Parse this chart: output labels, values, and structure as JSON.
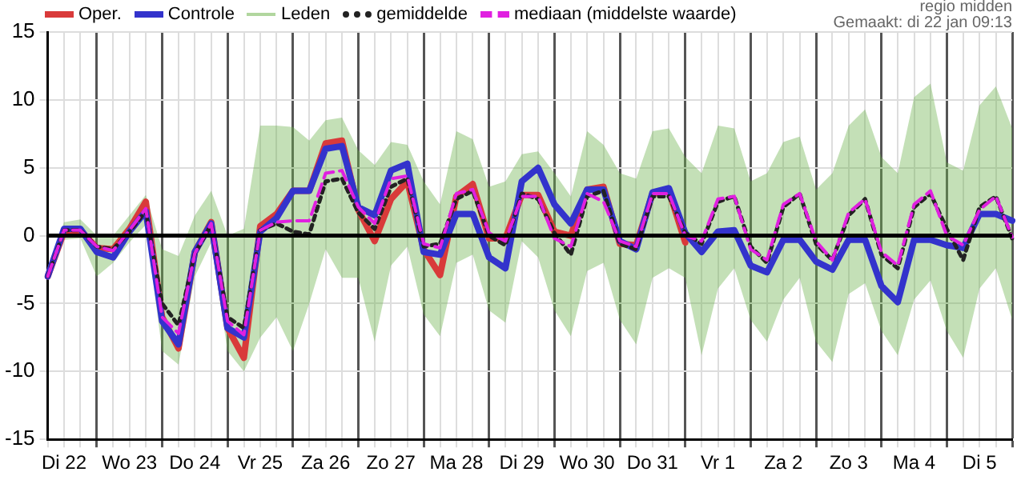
{
  "chart_data": {
    "type": "line",
    "categories": [
      null,
      "Di 22",
      null,
      null,
      null,
      "Wo 23",
      null,
      null,
      null,
      "Do 24",
      null,
      null,
      null,
      "Vr 25",
      null,
      null,
      null,
      "Za 26",
      null,
      null,
      null,
      "Zo 27",
      null,
      null,
      null,
      "Ma 28",
      null,
      null,
      null,
      "Di 29",
      null,
      null,
      null,
      "Wo 30",
      null,
      null,
      null,
      "Do 31",
      null,
      null,
      null,
      "Vr 1",
      null,
      null,
      null,
      "Za 2",
      null,
      null,
      null,
      "Zo 3",
      null,
      null,
      null,
      "Ma 4",
      null,
      null,
      null,
      "Di 5",
      null,
      null
    ],
    "ylim": [
      -15,
      15
    ],
    "yticks": [
      -15,
      -10,
      -5,
      0,
      5,
      10,
      15
    ],
    "grid": true,
    "legend": "top",
    "marker": "none",
    "ref_lines": [
      {
        "axis": "y",
        "value": 0,
        "color": "#000000"
      }
    ],
    "annotations": [
      "regio midden",
      "Gemaakt: di 22 jan 09:13"
    ],
    "series": [
      {
        "name": "Oper.",
        "color": "#d93a3a",
        "line_style": "solid",
        "values": [
          -3,
          0.3,
          0.4,
          -0.9,
          -1,
          0.5,
          2.5,
          -6,
          -8.3,
          -1.2,
          1,
          -6.8,
          -9,
          0.7,
          1.6,
          3.3,
          3.3,
          6.8,
          7,
          1.9,
          -0.4,
          2.7,
          4,
          -1,
          -2.9,
          2.9,
          3.8,
          -0.2,
          -0.2,
          3,
          3,
          0.3,
          0,
          3.4,
          3.6,
          -0.6,
          -0.7,
          3.1,
          3.3,
          -0.5,
          null,
          null,
          null,
          null,
          null,
          null,
          null,
          null,
          null,
          null,
          null,
          null,
          null,
          null,
          null,
          null,
          null,
          null,
          null,
          null
        ]
      },
      {
        "name": "Controle",
        "color": "#3333cc",
        "line_style": "solid",
        "values": [
          -3,
          0.5,
          0.5,
          -1.2,
          -1.6,
          0.3,
          1.8,
          -6.3,
          -8,
          -1.2,
          0.9,
          -6.8,
          -7.5,
          0.3,
          1.3,
          3.3,
          3.3,
          6.4,
          6.6,
          2.1,
          1.5,
          4.8,
          5.3,
          -1.2,
          -1.4,
          1.6,
          1.6,
          -1.6,
          -2.4,
          4,
          5,
          2.3,
          0.9,
          3.4,
          3.4,
          -0.4,
          -1,
          3.2,
          3.5,
          0.2,
          -1.2,
          0.3,
          0.4,
          -2.2,
          -2.7,
          -0.3,
          -0.3,
          -1.9,
          -2.5,
          -0.3,
          -0.3,
          -3.7,
          -4.9,
          -0.3,
          -0.3,
          -0.7,
          -0.9,
          1.6,
          1.6,
          1.1
        ]
      },
      {
        "name": "Leden",
        "color": "#6cb24a",
        "line_style": "solid",
        "values": [
          null,
          null,
          null,
          null,
          null,
          null,
          null,
          null,
          null,
          null,
          null,
          null,
          null,
          null,
          null,
          null,
          null,
          null,
          null,
          null,
          null,
          null,
          null,
          null,
          null,
          null,
          null,
          null,
          null,
          null,
          null,
          null,
          null,
          null,
          null,
          null,
          null,
          null,
          null,
          null,
          null,
          null,
          null,
          null,
          null,
          null,
          null,
          null,
          null,
          null,
          null,
          null,
          null,
          null,
          null,
          null,
          null,
          null,
          null,
          null
        ],
        "lower": [
          -3.3,
          -0.3,
          -0.2,
          -3,
          -2,
          -0.5,
          0.8,
          -8.5,
          -9.5,
          -3,
          -0.5,
          -8.5,
          -10,
          -7.5,
          -6,
          -8.5,
          -5,
          -1,
          -3.1,
          -3.1,
          -7.8,
          -2.2,
          -0.8,
          -5.8,
          -7.4,
          -2,
          -1.4,
          -5.5,
          -6.4,
          -0.4,
          -1.6,
          -5.5,
          -7.4,
          -2.6,
          -2,
          -6.2,
          -8,
          -3.1,
          -2.4,
          -3.1,
          -8.8,
          -3.9,
          -2.4,
          -6.2,
          -7.8,
          -4.7,
          -3.1,
          -7.8,
          -9.3,
          -4.3,
          -3.5,
          -7,
          -8.8,
          -4.7,
          -3.3,
          -7,
          -9,
          -3.9,
          -2.4,
          -6.2
        ],
        "upper": [
          -2.5,
          1,
          1.2,
          0,
          0,
          1.5,
          3,
          -1,
          -1.5,
          1.5,
          3.3,
          0,
          0.5,
          8.1,
          8.1,
          8,
          7,
          8.5,
          8.7,
          6.3,
          5.2,
          6.9,
          6.7,
          4,
          2.3,
          7.7,
          7.1,
          3.6,
          4,
          6,
          6.2,
          4.6,
          2.9,
          7.7,
          6.7,
          4.6,
          4.2,
          7.7,
          7.9,
          5.8,
          4.6,
          8.1,
          7.9,
          4,
          4.6,
          6.9,
          7.3,
          3.4,
          4.6,
          8.1,
          9.3,
          5.8,
          4.6,
          10.2,
          11.2,
          5.4,
          4.8,
          9.6,
          11,
          7.9
        ]
      },
      {
        "name": "gemiddelde",
        "color": "#222222",
        "line_style": "dotted",
        "values": [
          -3,
          0.4,
          0.4,
          -0.8,
          -1,
          0.3,
          1.8,
          -5,
          -6.6,
          -1.3,
          0.8,
          -6,
          -6.8,
          0.4,
          0.9,
          0.3,
          0.1,
          4,
          4.2,
          1.7,
          0.5,
          3.6,
          4.2,
          -0.8,
          -0.6,
          2.7,
          3.3,
          0,
          -0.7,
          3.1,
          2.7,
          0.2,
          -1.4,
          2.9,
          3.3,
          -0.6,
          -1,
          2.9,
          2.9,
          0.2,
          -0.6,
          2.5,
          2.9,
          -0.8,
          -2,
          2.1,
          3.1,
          -0.6,
          -1.8,
          1.5,
          2.7,
          -1.4,
          -2.4,
          2.1,
          3.1,
          0.5,
          -1.8,
          2.1,
          2.9,
          -0.2
        ]
      },
      {
        "name": "mediaan (middelste waarde)",
        "color": "#e020e0",
        "line_style": "dashed",
        "values": [
          -3,
          0.4,
          0.4,
          -0.8,
          -1.1,
          0.4,
          2,
          -6,
          -7.2,
          -1.3,
          0.9,
          -6.3,
          -7.3,
          0.4,
          1,
          1.1,
          1.1,
          4.6,
          4.8,
          2.1,
          0.9,
          4.2,
          4.4,
          -0.6,
          -0.9,
          3.1,
          3.4,
          0.2,
          -0.4,
          2.9,
          2.9,
          -0.2,
          -0.8,
          3.1,
          2.5,
          -0.4,
          -0.8,
          3.1,
          3.1,
          0,
          -0.4,
          2.7,
          2.9,
          -1,
          -1.8,
          2.3,
          3.1,
          -0.4,
          -1.8,
          1.7,
          2.7,
          -1.2,
          -2.2,
          2.3,
          3.3,
          0,
          -0.7,
          1.9,
          2.9,
          -0.1
        ]
      }
    ]
  }
}
